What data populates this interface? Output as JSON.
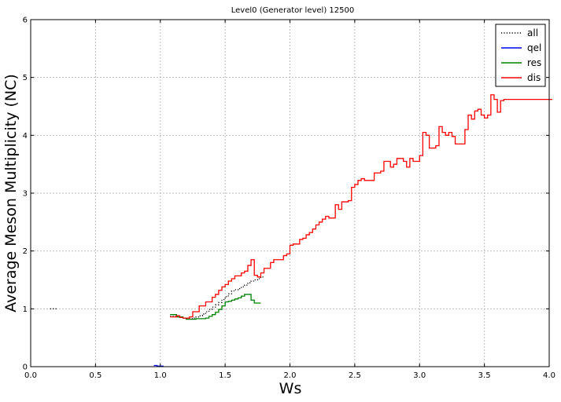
{
  "chart_data": {
    "type": "line",
    "drawstyle": "steps",
    "title": "Level0 (Generator level) 12500",
    "xlabel": "Ws",
    "ylabel": "Average Meson Multiplicity (NC)",
    "xlim": [
      0.0,
      4.0
    ],
    "ylim": [
      0,
      6
    ],
    "xticks": [
      "0.0",
      "0.5",
      "1.0",
      "1.5",
      "2.0",
      "2.5",
      "3.0",
      "3.5",
      "4.0"
    ],
    "yticks": [
      "0",
      "1",
      "2",
      "3",
      "4",
      "5",
      "6"
    ],
    "grid": true,
    "legend_position": "top-right",
    "bin_width": 0.025,
    "series": [
      {
        "name": "all",
        "color": "#000000",
        "linestyle": "dotted",
        "segments": [
          {
            "x": [
              0.15,
              0.175
            ],
            "y": [
              1.0,
              1.0
            ]
          },
          {
            "x": [
              1.075,
              1.1,
              1.125,
              1.15,
              1.175,
              1.2,
              1.225,
              1.25,
              1.275,
              1.3,
              1.325,
              1.35,
              1.375,
              1.4,
              1.425,
              1.45,
              1.475,
              1.5,
              1.525,
              1.55,
              1.575,
              1.6,
              1.625,
              1.65,
              1.675,
              1.7,
              1.725,
              1.75,
              1.775
            ],
            "y": [
              0.87,
              0.87,
              0.86,
              0.85,
              0.84,
              0.83,
              0.83,
              0.84,
              0.86,
              0.88,
              0.91,
              0.95,
              0.99,
              1.03,
              1.07,
              1.11,
              1.16,
              1.21,
              1.26,
              1.31,
              1.33,
              1.35,
              1.38,
              1.41,
              1.45,
              1.48,
              1.5,
              1.52,
              1.55
            ]
          }
        ]
      },
      {
        "name": "qel",
        "color": "#0000ff",
        "linestyle": "solid",
        "segments": [
          {
            "x": [
              0.95,
              0.975,
              1.0
            ],
            "y": [
              0.02,
              0.01,
              0.01
            ]
          }
        ]
      },
      {
        "name": "res",
        "color": "#008000",
        "linestyle": "solid",
        "segments": [
          {
            "x": [
              1.075,
              1.1,
              1.125,
              1.15,
              1.175,
              1.2,
              1.225,
              1.25,
              1.275,
              1.3,
              1.325,
              1.35,
              1.375,
              1.4,
              1.425,
              1.45,
              1.475,
              1.5,
              1.525,
              1.55,
              1.575,
              1.6,
              1.625,
              1.65,
              1.675,
              1.7,
              1.725,
              1.75
            ],
            "y": [
              0.9,
              0.9,
              0.86,
              0.86,
              0.84,
              0.82,
              0.82,
              0.82,
              0.83,
              0.83,
              0.83,
              0.84,
              0.87,
              0.9,
              0.94,
              0.99,
              1.05,
              1.12,
              1.13,
              1.15,
              1.17,
              1.19,
              1.22,
              1.25,
              1.25,
              1.15,
              1.1,
              1.1
            ]
          }
        ]
      },
      {
        "name": "dis",
        "color": "#ff0000",
        "linestyle": "solid",
        "segments": [
          {
            "x": [
              1.075,
              1.1,
              1.125,
              1.15,
              1.175,
              1.2,
              1.225,
              1.25,
              1.275,
              1.3,
              1.325,
              1.35,
              1.375,
              1.4,
              1.425,
              1.45,
              1.475,
              1.5,
              1.525,
              1.55,
              1.575,
              1.6,
              1.625,
              1.65,
              1.675,
              1.7,
              1.725,
              1.75,
              1.775,
              1.8,
              1.825,
              1.85,
              1.875,
              1.9,
              1.925,
              1.95,
              1.975,
              2.0,
              2.025,
              2.05,
              2.075,
              2.1,
              2.125,
              2.15,
              2.175,
              2.2,
              2.225,
              2.25,
              2.275,
              2.3,
              2.325,
              2.35,
              2.375,
              2.4,
              2.425,
              2.45,
              2.475,
              2.5,
              2.525,
              2.55,
              2.575,
              2.6,
              2.625,
              2.65,
              2.675,
              2.7,
              2.725,
              2.75,
              2.775,
              2.8,
              2.825,
              2.85,
              2.875,
              2.9,
              2.925,
              2.95,
              2.975,
              3.0,
              3.025,
              3.05,
              3.075,
              3.1,
              3.125,
              3.15,
              3.175,
              3.2,
              3.225,
              3.25,
              3.275,
              3.3,
              3.325,
              3.35,
              3.375,
              3.4,
              3.425,
              3.45,
              3.475,
              3.5,
              3.525,
              3.55,
              3.575,
              3.6,
              3.625,
              3.65,
              3.675,
              3.7,
              3.725,
              3.75,
              3.775,
              3.8,
              3.825,
              3.85,
              3.875,
              3.9,
              3.925,
              3.95,
              3.975,
              4.0
            ],
            "y": [
              0.86,
              0.86,
              0.88,
              0.85,
              0.84,
              0.84,
              0.86,
              0.95,
              0.95,
              1.05,
              1.05,
              1.12,
              1.12,
              1.2,
              1.25,
              1.32,
              1.38,
              1.42,
              1.48,
              1.52,
              1.57,
              1.57,
              1.62,
              1.65,
              1.75,
              1.85,
              1.58,
              1.55,
              1.62,
              1.7,
              1.7,
              1.8,
              1.85,
              1.85,
              1.85,
              1.92,
              1.95,
              2.1,
              2.12,
              2.12,
              2.2,
              2.22,
              2.28,
              2.32,
              2.38,
              2.45,
              2.5,
              2.55,
              2.6,
              2.57,
              2.57,
              2.8,
              2.72,
              2.85,
              2.85,
              2.87,
              3.1,
              3.15,
              3.22,
              3.25,
              3.22,
              3.22,
              3.22,
              3.35,
              3.35,
              3.38,
              3.55,
              3.55,
              3.45,
              3.5,
              3.6,
              3.6,
              3.55,
              3.45,
              3.6,
              3.55,
              3.55,
              3.65,
              4.05,
              4.0,
              3.78,
              3.78,
              3.82,
              4.15,
              4.05,
              4.0,
              4.05,
              3.98,
              3.85,
              3.85,
              3.85,
              4.1,
              4.35,
              4.28,
              4.42,
              4.45,
              4.35,
              4.3,
              4.35,
              4.7,
              4.62,
              4.4,
              4.6,
              4.62,
              4.62,
              4.62,
              4.62,
              4.62,
              4.62,
              4.62,
              4.62,
              4.62,
              4.62,
              4.62,
              4.62,
              4.62,
              4.62,
              4.62
            ]
          }
        ]
      }
    ]
  }
}
